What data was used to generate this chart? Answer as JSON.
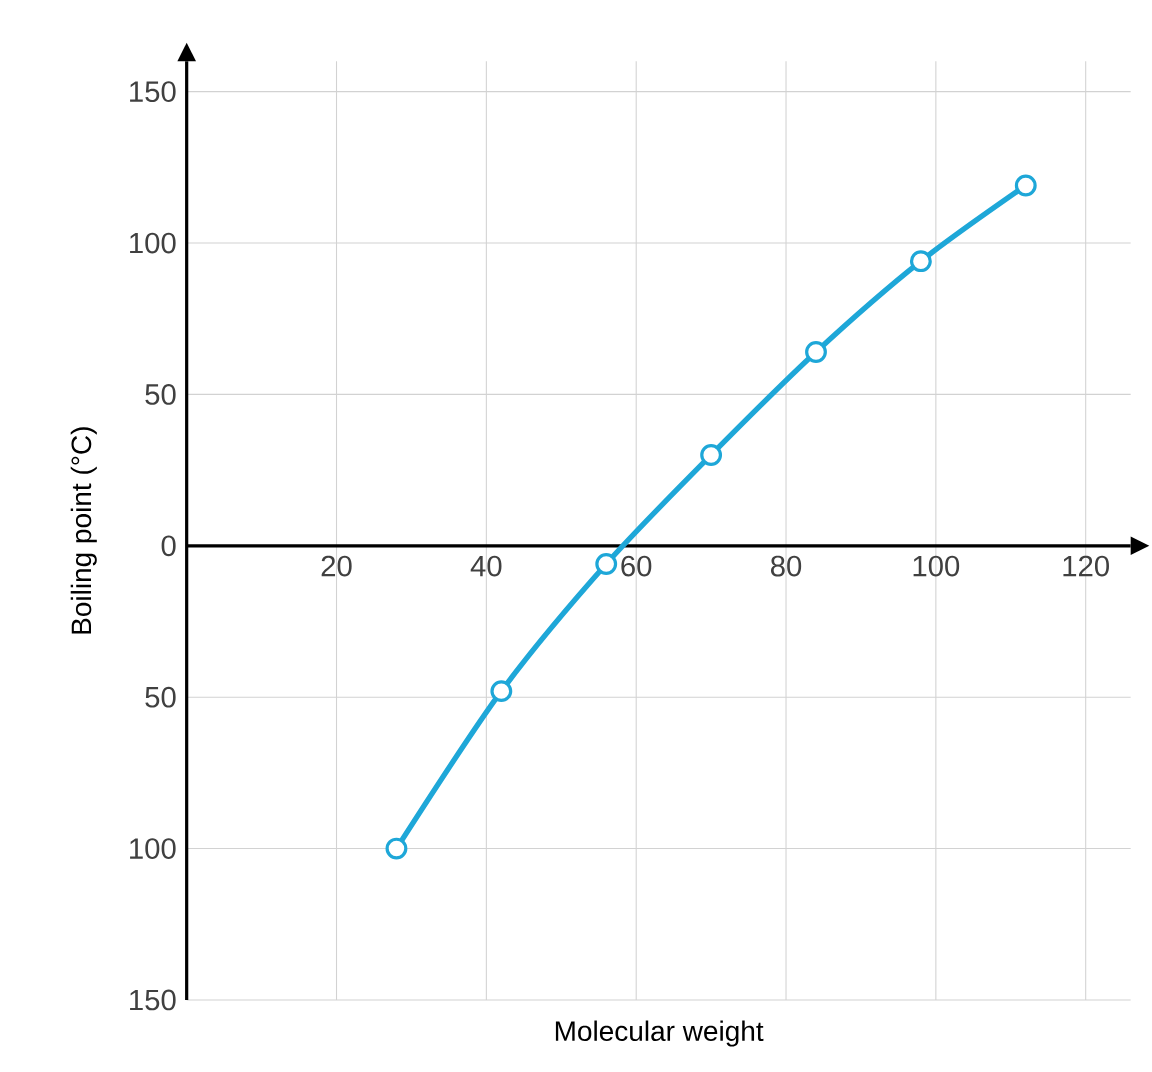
{
  "chart_data": {
    "type": "line",
    "xlabel": "Molecular weight",
    "ylabel": "Boiling point (°C)",
    "x": [
      28,
      42,
      56,
      70,
      84,
      98,
      112
    ],
    "values": [
      -100,
      -48,
      -6,
      30,
      64,
      94,
      119
    ],
    "color": "#1ea7d8",
    "xlim": [
      0,
      126
    ],
    "ylim": [
      -150,
      160
    ],
    "xticks": [
      20,
      40,
      60,
      80,
      100,
      120
    ],
    "yticks": [
      {
        "value": -150,
        "label": "150"
      },
      {
        "value": -100,
        "label": "100"
      },
      {
        "value": -50,
        "label": "50"
      },
      0,
      50,
      100,
      150
    ],
    "grid": true,
    "marker": "circle",
    "line_style": "solid"
  }
}
